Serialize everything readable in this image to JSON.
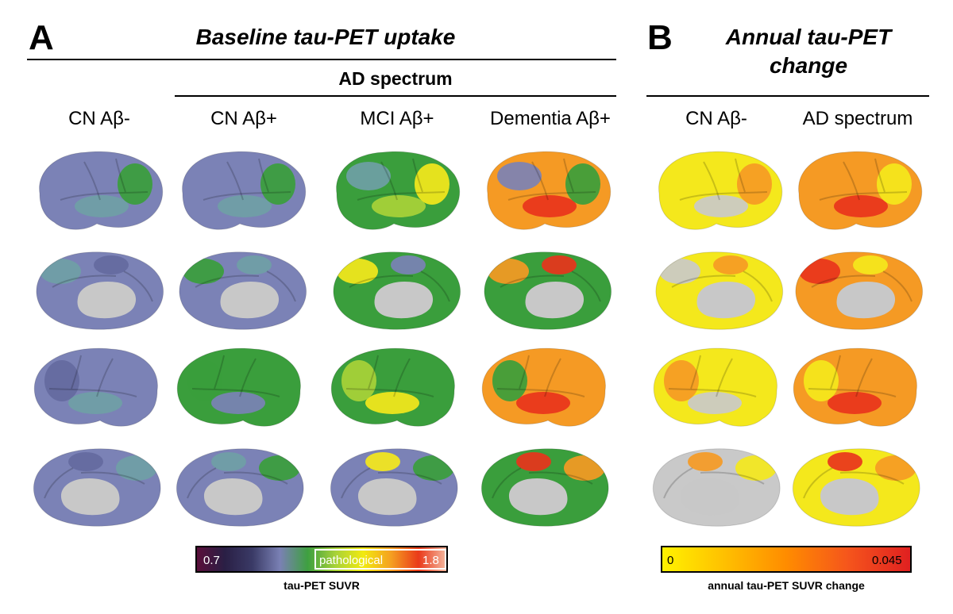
{
  "panel_a": {
    "letter": "A",
    "title": "Baseline tau-PET uptake",
    "subheader": "AD spectrum",
    "columns": [
      "CN Aβ-",
      "CN Aβ+",
      "MCI Aβ+",
      "Dementia Aβ+"
    ],
    "colorbar": {
      "min_label": "0.7",
      "mid_label": "pathological",
      "max_label": "1.8",
      "caption": "tau-PET SUVR",
      "colors": [
        "#5a0f3a",
        "#2a1f45",
        "#3a3a66",
        "#7a80b4",
        "#3ea040",
        "#a8d238",
        "#f2ea10",
        "#f5a020",
        "#ea3a1a",
        "#f4b8a0"
      ]
    }
  },
  "panel_b": {
    "letter": "B",
    "title_line1": "Annual tau-PET",
    "title_line2": "change",
    "columns": [
      "CN Aβ-",
      "AD spectrum"
    ],
    "colorbar": {
      "min_label": "0",
      "max_label": "0.045",
      "caption": "annual tau-PET SUVR change",
      "colors": [
        "#fff200",
        "#ffc000",
        "#ff8c00",
        "#f5551c",
        "#e02020"
      ]
    }
  },
  "palette": {
    "purple": "#7b82b6",
    "purple_dark": "#646aa0",
    "teal": "#6fa0a6",
    "green": "#3a9e3c",
    "lime": "#a9d238",
    "yellow": "#f4e81c",
    "orange": "#f59a24",
    "red": "#e8341c",
    "gray": "#bdbdbd",
    "ygray": "#c9c9c9"
  },
  "brains": [
    [
      {
        "base": "purple",
        "blobs": [
          "teal",
          "green"
        ]
      },
      {
        "base": "purple",
        "blobs": [
          "teal",
          "green"
        ]
      },
      {
        "base": "green",
        "blobs": [
          "lime",
          "yellow",
          "teal"
        ]
      },
      {
        "base": "orange",
        "blobs": [
          "red",
          "green",
          "purple"
        ]
      }
    ],
    [
      {
        "base": "purple",
        "blobs": [
          "teal",
          "purple_dark"
        ]
      },
      {
        "base": "purple",
        "blobs": [
          "green",
          "teal"
        ]
      },
      {
        "base": "green",
        "blobs": [
          "yellow",
          "purple"
        ]
      },
      {
        "base": "green",
        "blobs": [
          "orange",
          "red"
        ]
      }
    ],
    [
      {
        "base": "purple",
        "blobs": [
          "teal",
          "purple_dark"
        ]
      },
      {
        "base": "green",
        "blobs": [
          "purple",
          "green"
        ]
      },
      {
        "base": "green",
        "blobs": [
          "yellow",
          "lime"
        ]
      },
      {
        "base": "orange",
        "blobs": [
          "red",
          "green"
        ]
      }
    ],
    [
      {
        "base": "purple",
        "blobs": [
          "teal",
          "purple_dark"
        ]
      },
      {
        "base": "purple",
        "blobs": [
          "green",
          "teal"
        ]
      },
      {
        "base": "purple",
        "blobs": [
          "green",
          "yellow"
        ]
      },
      {
        "base": "green",
        "blobs": [
          "orange",
          "red"
        ]
      }
    ]
  ],
  "brains_b": [
    [
      {
        "base": "yellow",
        "blobs": [
          "ygray",
          "orange"
        ]
      },
      {
        "base": "orange",
        "blobs": [
          "red",
          "yellow"
        ]
      }
    ],
    [
      {
        "base": "yellow",
        "blobs": [
          "ygray",
          "orange"
        ]
      },
      {
        "base": "orange",
        "blobs": [
          "red",
          "yellow"
        ]
      }
    ],
    [
      {
        "base": "yellow",
        "blobs": [
          "ygray",
          "orange"
        ]
      },
      {
        "base": "orange",
        "blobs": [
          "red",
          "yellow"
        ]
      }
    ],
    [
      {
        "base": "ygray",
        "blobs": [
          "yellow",
          "orange"
        ]
      },
      {
        "base": "yellow",
        "blobs": [
          "orange",
          "red"
        ]
      }
    ]
  ]
}
